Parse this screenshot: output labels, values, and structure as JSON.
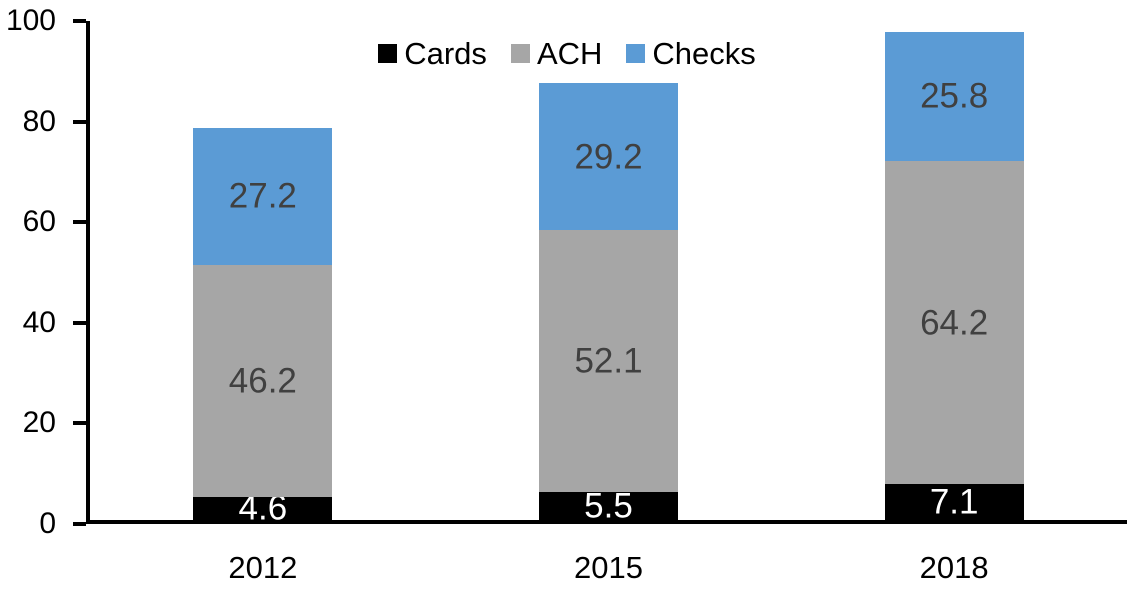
{
  "chart_data": {
    "type": "bar",
    "stacked": true,
    "title": "",
    "xlabel": "",
    "ylabel": "",
    "categories": [
      "2012",
      "2015",
      "2018"
    ],
    "series": [
      {
        "name": "Cards",
        "color": "#000000",
        "label_color": "#ffffff",
        "values": [
          4.6,
          5.5,
          7.1
        ]
      },
      {
        "name": "ACH",
        "color": "#A6A6A6",
        "label_color": "#404040",
        "values": [
          46.2,
          52.1,
          64.2
        ]
      },
      {
        "name": "Checks",
        "color": "#5B9BD5",
        "label_color": "#404040",
        "values": [
          27.2,
          29.2,
          25.8
        ]
      }
    ],
    "y_axis": {
      "min": 0,
      "max": 100,
      "ticks": [
        0,
        20,
        40,
        60,
        80,
        100
      ]
    },
    "legend": {
      "position": "top",
      "entries": [
        "Cards",
        "ACH",
        "Checks"
      ]
    },
    "grid": "off",
    "axis_color": "#000000"
  }
}
